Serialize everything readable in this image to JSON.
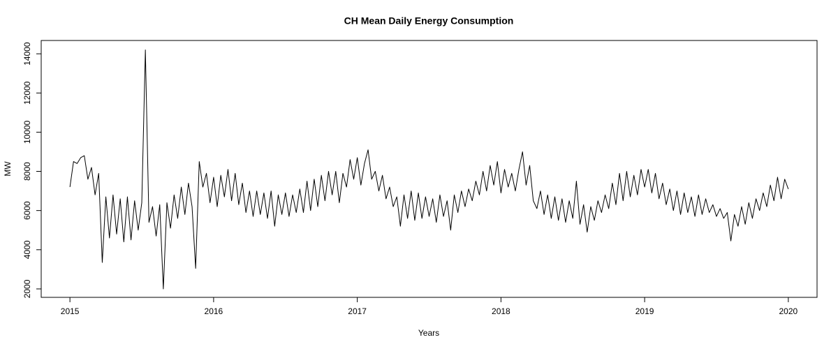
{
  "chart_data": {
    "type": "line",
    "title": "CH Mean Daily Energy Consumption",
    "xlabel": "Years",
    "ylabel": "MW",
    "xlim": [
      2014.8,
      2020.2
    ],
    "ylim": [
      1570,
      14680
    ],
    "xticks": [
      2015,
      2016,
      2017,
      2018,
      2019,
      2020
    ],
    "yticks": [
      2000,
      4000,
      6000,
      8000,
      10000,
      12000,
      14000
    ],
    "grid": false,
    "x": [
      2015,
      2015.025,
      2015.05,
      2015.075,
      2015.1,
      2015.125,
      2015.15,
      2015.175,
      2015.2,
      2015.225,
      2015.25,
      2015.275,
      2015.3,
      2015.325,
      2015.35,
      2015.375,
      2015.4,
      2015.425,
      2015.45,
      2015.475,
      2015.5,
      2015.525,
      2015.55,
      2015.575,
      2015.6,
      2015.625,
      2015.65,
      2015.675,
      2015.7,
      2015.725,
      2015.75,
      2015.775,
      2015.8,
      2015.825,
      2015.85,
      2015.875,
      2015.9,
      2015.925,
      2015.95,
      2015.975,
      2016,
      2016.025,
      2016.05,
      2016.075,
      2016.1,
      2016.125,
      2016.15,
      2016.175,
      2016.2,
      2016.225,
      2016.25,
      2016.275,
      2016.3,
      2016.325,
      2016.35,
      2016.375,
      2016.4,
      2016.425,
      2016.45,
      2016.475,
      2016.5,
      2016.525,
      2016.55,
      2016.575,
      2016.6,
      2016.625,
      2016.65,
      2016.675,
      2016.7,
      2016.725,
      2016.75,
      2016.775,
      2016.8,
      2016.825,
      2016.85,
      2016.875,
      2016.9,
      2016.925,
      2016.95,
      2016.975,
      2017,
      2017.025,
      2017.05,
      2017.075,
      2017.1,
      2017.125,
      2017.15,
      2017.175,
      2017.2,
      2017.225,
      2017.25,
      2017.275,
      2017.3,
      2017.325,
      2017.35,
      2017.375,
      2017.4,
      2017.425,
      2017.45,
      2017.475,
      2017.5,
      2017.525,
      2017.55,
      2017.575,
      2017.6,
      2017.625,
      2017.65,
      2017.675,
      2017.7,
      2017.725,
      2017.75,
      2017.775,
      2017.8,
      2017.825,
      2017.85,
      2017.875,
      2017.9,
      2017.925,
      2017.95,
      2017.975,
      2018,
      2018.025,
      2018.05,
      2018.075,
      2018.1,
      2018.125,
      2018.15,
      2018.175,
      2018.2,
      2018.225,
      2018.25,
      2018.275,
      2018.3,
      2018.325,
      2018.35,
      2018.375,
      2018.4,
      2018.425,
      2018.45,
      2018.475,
      2018.5,
      2018.525,
      2018.55,
      2018.575,
      2018.6,
      2018.625,
      2018.65,
      2018.675,
      2018.7,
      2018.725,
      2018.75,
      2018.775,
      2018.8,
      2018.825,
      2018.85,
      2018.875,
      2018.9,
      2018.925,
      2018.95,
      2018.975,
      2019,
      2019.025,
      2019.05,
      2019.075,
      2019.1,
      2019.125,
      2019.15,
      2019.175,
      2019.2,
      2019.225,
      2019.25,
      2019.275,
      2019.3,
      2019.325,
      2019.35,
      2019.375,
      2019.4,
      2019.425,
      2019.45,
      2019.475,
      2019.5,
      2019.525,
      2019.55,
      2019.575,
      2019.6,
      2019.625,
      2019.65,
      2019.675,
      2019.7,
      2019.725,
      2019.75,
      2019.775,
      2019.8,
      2019.825,
      2019.85,
      2019.875,
      2019.9,
      2019.925,
      2019.95,
      2019.975,
      2020
    ],
    "series": [
      {
        "name": "MW",
        "color": "#000000",
        "values": [
          7200,
          8500,
          8400,
          8700,
          8800,
          7600,
          8200,
          6800,
          7900,
          3350,
          6700,
          4600,
          6800,
          4800,
          6600,
          4400,
          6700,
          4500,
          6500,
          5000,
          6400,
          14200,
          5400,
          6200,
          4700,
          6300,
          2000,
          6400,
          5100,
          6800,
          5600,
          7200,
          5800,
          7400,
          6200,
          3050,
          8500,
          7200,
          7900,
          6400,
          7700,
          6200,
          7800,
          6700,
          8100,
          6500,
          7900,
          6300,
          7400,
          5900,
          7000,
          5700,
          7000,
          5800,
          6900,
          5600,
          7000,
          5200,
          6800,
          5800,
          6900,
          5700,
          6800,
          5900,
          7100,
          5900,
          7500,
          6000,
          7600,
          6200,
          7800,
          6500,
          8000,
          6800,
          8000,
          6400,
          7900,
          7200,
          8600,
          7600,
          8700,
          7300,
          8400,
          9100,
          7600,
          8000,
          7000,
          7800,
          6600,
          7200,
          6200,
          6700,
          5200,
          6800,
          5600,
          7000,
          5500,
          6900,
          5600,
          6700,
          5700,
          6600,
          5400,
          6800,
          5700,
          6500,
          5000,
          6800,
          5900,
          7000,
          6200,
          7100,
          6500,
          7500,
          6800,
          8000,
          7000,
          8300,
          7300,
          8500,
          6900,
          8100,
          7200,
          7900,
          7000,
          8100,
          9000,
          7300,
          8300,
          6500,
          6100,
          7000,
          5800,
          6800,
          5600,
          6700,
          5500,
          6600,
          5400,
          6500,
          5600,
          7500,
          5300,
          6300,
          4900,
          6200,
          5500,
          6500,
          5900,
          6800,
          6100,
          7400,
          6300,
          7900,
          6500,
          8000,
          6700,
          7800,
          6800,
          8100,
          7200,
          8100,
          6900,
          7900,
          6600,
          7400,
          6300,
          7100,
          6000,
          7000,
          5800,
          6900,
          5900,
          6700,
          5700,
          6800,
          5800,
          6600,
          5900,
          6300,
          5700,
          6100,
          5600,
          5900,
          4450,
          5800,
          5200,
          6200,
          5300,
          6400,
          5600,
          6600,
          6000,
          6900,
          6200,
          7300,
          6500,
          7700,
          6600,
          7600,
          7100
        ]
      }
    ]
  }
}
